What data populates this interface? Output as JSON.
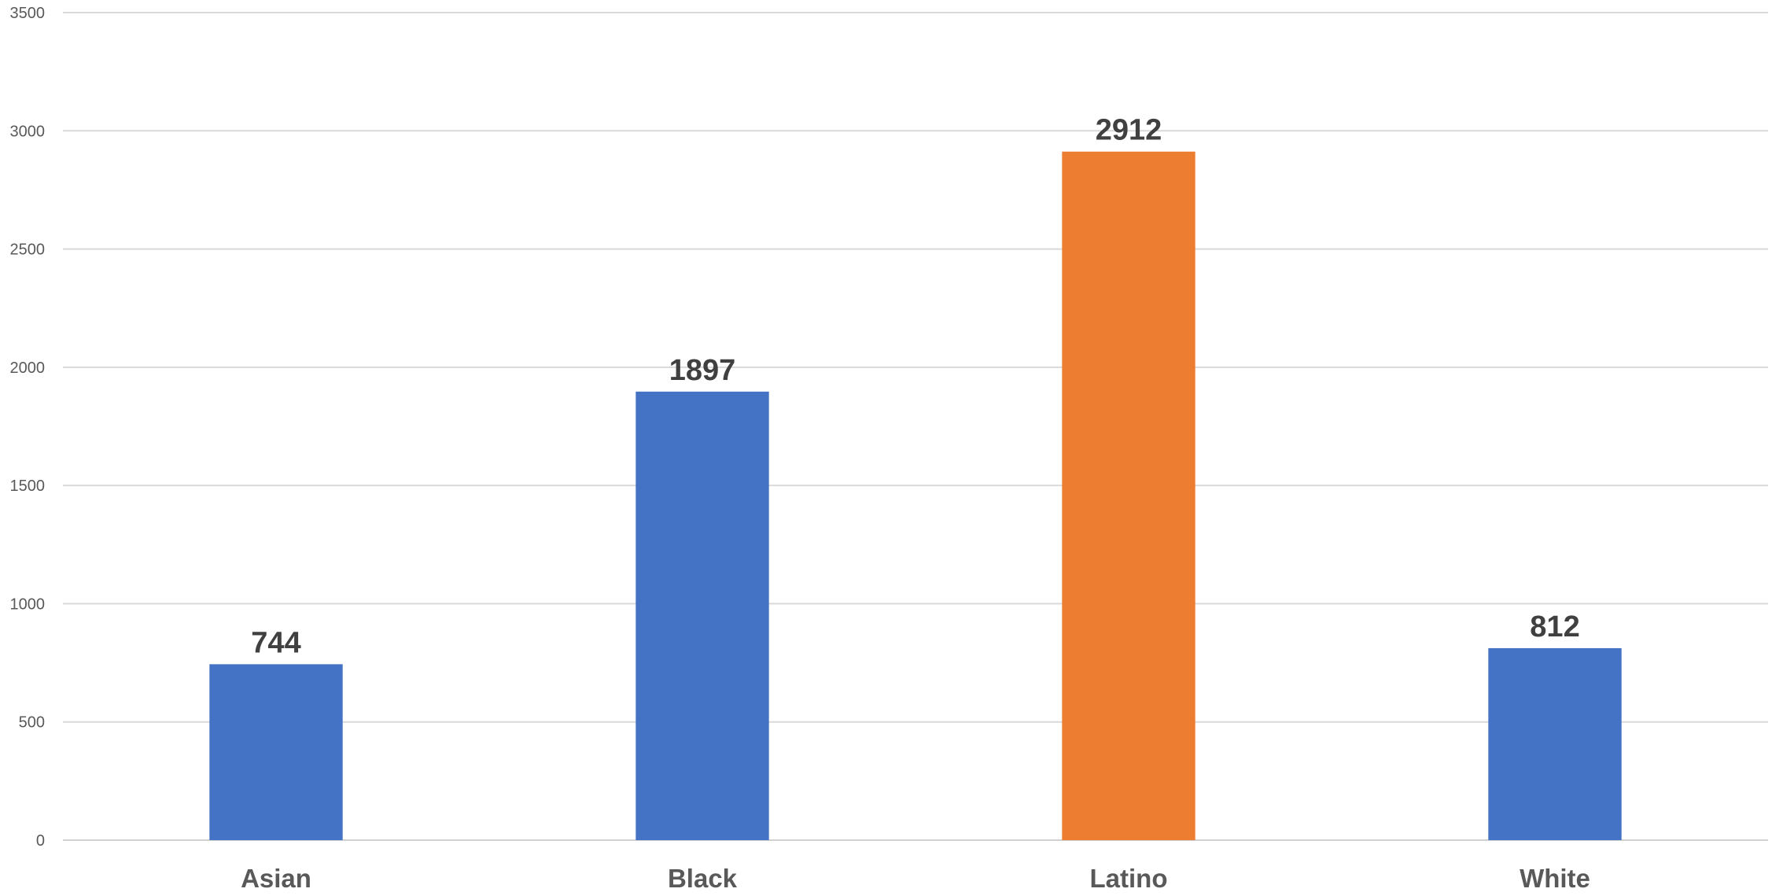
{
  "chart_data": {
    "type": "bar",
    "title": "",
    "xlabel": "",
    "ylabel": "",
    "categories": [
      "Asian",
      "Black",
      "Latino",
      "White"
    ],
    "values": [
      744,
      1897,
      2912,
      812
    ],
    "data_labels": [
      "744",
      "1897",
      "2912",
      "812"
    ],
    "bar_colors": [
      "#4472c4",
      "#4472c4",
      "#ed7d31",
      "#4472c4"
    ],
    "ylim": [
      0,
      3500
    ],
    "yticks": [
      0,
      500,
      1000,
      1500,
      2000,
      2500,
      3000,
      3500
    ],
    "ytick_labels": [
      "0",
      "500",
      "1000",
      "1500",
      "2000",
      "2500",
      "3000",
      "3500"
    ],
    "grid": true,
    "legend": "none"
  }
}
